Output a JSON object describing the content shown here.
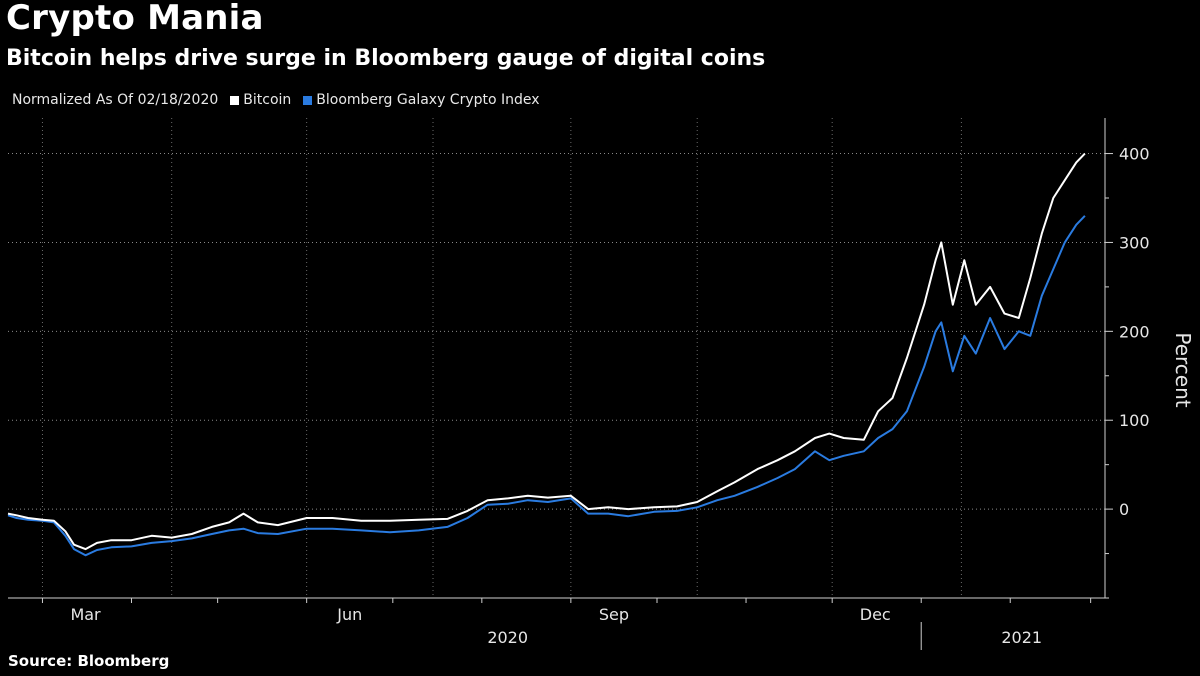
{
  "title": "Crypto Mania",
  "subtitle": "Bitcoin helps drive surge in Bloomberg gauge of digital coins",
  "legend": {
    "note": "Normalized As Of 02/18/2020",
    "items": [
      {
        "label": "Bitcoin",
        "color": "#ffffff"
      },
      {
        "label": "Bloomberg Galaxy Crypto Index",
        "color": "#2a7be0"
      }
    ]
  },
  "source": "Source: Bloomberg",
  "chart_data": {
    "type": "line",
    "ylabel": "Percent",
    "ylim": [
      -100,
      440
    ],
    "yticks": [
      0,
      100,
      200,
      300,
      400
    ],
    "x_month_labels": [
      "Mar",
      "Jun",
      "Sep",
      "Dec"
    ],
    "x_year_labels": [
      "2020",
      "2021"
    ],
    "grid": true,
    "legend_position": "top-left",
    "series": [
      {
        "name": "Bitcoin",
        "color": "#ffffff",
        "points": [
          [
            "2020-02-18",
            -5
          ],
          [
            "2020-02-21",
            -7
          ],
          [
            "2020-02-25",
            -10
          ],
          [
            "2020-03-01",
            -12
          ],
          [
            "2020-03-05",
            -13
          ],
          [
            "2020-03-09",
            -25
          ],
          [
            "2020-03-12",
            -40
          ],
          [
            "2020-03-16",
            -45
          ],
          [
            "2020-03-20",
            -38
          ],
          [
            "2020-03-25",
            -35
          ],
          [
            "2020-04-01",
            -35
          ],
          [
            "2020-04-08",
            -30
          ],
          [
            "2020-04-15",
            -32
          ],
          [
            "2020-04-22",
            -28
          ],
          [
            "2020-04-29",
            -20
          ],
          [
            "2020-05-05",
            -15
          ],
          [
            "2020-05-10",
            -5
          ],
          [
            "2020-05-15",
            -15
          ],
          [
            "2020-05-22",
            -18
          ],
          [
            "2020-06-01",
            -10
          ],
          [
            "2020-06-10",
            -10
          ],
          [
            "2020-06-20",
            -13
          ],
          [
            "2020-06-30",
            -13
          ],
          [
            "2020-07-10",
            -12
          ],
          [
            "2020-07-20",
            -11
          ],
          [
            "2020-07-27",
            -2
          ],
          [
            "2020-08-03",
            10
          ],
          [
            "2020-08-10",
            12
          ],
          [
            "2020-08-17",
            15
          ],
          [
            "2020-08-24",
            13
          ],
          [
            "2020-09-01",
            15
          ],
          [
            "2020-09-07",
            0
          ],
          [
            "2020-09-14",
            2
          ],
          [
            "2020-09-21",
            0
          ],
          [
            "2020-09-30",
            2
          ],
          [
            "2020-10-08",
            3
          ],
          [
            "2020-10-15",
            8
          ],
          [
            "2020-10-22",
            20
          ],
          [
            "2020-10-28",
            30
          ],
          [
            "2020-11-05",
            45
          ],
          [
            "2020-11-12",
            55
          ],
          [
            "2020-11-18",
            65
          ],
          [
            "2020-11-25",
            80
          ],
          [
            "2020-11-30",
            85
          ],
          [
            "2020-12-05",
            80
          ],
          [
            "2020-12-12",
            78
          ],
          [
            "2020-12-17",
            110
          ],
          [
            "2020-12-22",
            125
          ],
          [
            "2020-12-27",
            170
          ],
          [
            "2021-01-02",
            230
          ],
          [
            "2021-01-06",
            280
          ],
          [
            "2021-01-08",
            300
          ],
          [
            "2021-01-12",
            230
          ],
          [
            "2021-01-16",
            280
          ],
          [
            "2021-01-20",
            230
          ],
          [
            "2021-01-25",
            250
          ],
          [
            "2021-01-30",
            220
          ],
          [
            "2021-02-04",
            215
          ],
          [
            "2021-02-08",
            260
          ],
          [
            "2021-02-12",
            310
          ],
          [
            "2021-02-16",
            350
          ],
          [
            "2021-02-20",
            370
          ],
          [
            "2021-02-24",
            390
          ],
          [
            "2021-02-27",
            400
          ]
        ]
      },
      {
        "name": "Bloomberg Galaxy Crypto Index",
        "color": "#2a7be0",
        "points": [
          [
            "2020-02-18",
            -7
          ],
          [
            "2020-02-21",
            -10
          ],
          [
            "2020-02-25",
            -12
          ],
          [
            "2020-03-01",
            -13
          ],
          [
            "2020-03-05",
            -15
          ],
          [
            "2020-03-09",
            -30
          ],
          [
            "2020-03-12",
            -45
          ],
          [
            "2020-03-16",
            -52
          ],
          [
            "2020-03-20",
            -46
          ],
          [
            "2020-03-25",
            -43
          ],
          [
            "2020-04-01",
            -42
          ],
          [
            "2020-04-08",
            -38
          ],
          [
            "2020-04-15",
            -36
          ],
          [
            "2020-04-22",
            -33
          ],
          [
            "2020-04-29",
            -28
          ],
          [
            "2020-05-05",
            -24
          ],
          [
            "2020-05-10",
            -22
          ],
          [
            "2020-05-15",
            -27
          ],
          [
            "2020-05-22",
            -28
          ],
          [
            "2020-06-01",
            -22
          ],
          [
            "2020-06-10",
            -22
          ],
          [
            "2020-06-20",
            -24
          ],
          [
            "2020-06-30",
            -26
          ],
          [
            "2020-07-10",
            -24
          ],
          [
            "2020-07-20",
            -20
          ],
          [
            "2020-07-27",
            -10
          ],
          [
            "2020-08-03",
            5
          ],
          [
            "2020-08-10",
            6
          ],
          [
            "2020-08-17",
            10
          ],
          [
            "2020-08-24",
            8
          ],
          [
            "2020-09-01",
            12
          ],
          [
            "2020-09-07",
            -5
          ],
          [
            "2020-09-14",
            -5
          ],
          [
            "2020-09-21",
            -8
          ],
          [
            "2020-09-30",
            -3
          ],
          [
            "2020-10-08",
            -2
          ],
          [
            "2020-10-15",
            2
          ],
          [
            "2020-10-22",
            10
          ],
          [
            "2020-10-28",
            15
          ],
          [
            "2020-11-05",
            25
          ],
          [
            "2020-11-12",
            35
          ],
          [
            "2020-11-18",
            45
          ],
          [
            "2020-11-25",
            65
          ],
          [
            "2020-11-30",
            55
          ],
          [
            "2020-12-05",
            60
          ],
          [
            "2020-12-12",
            65
          ],
          [
            "2020-12-17",
            80
          ],
          [
            "2020-12-22",
            90
          ],
          [
            "2020-12-27",
            110
          ],
          [
            "2021-01-02",
            160
          ],
          [
            "2021-01-06",
            200
          ],
          [
            "2021-01-08",
            210
          ],
          [
            "2021-01-12",
            155
          ],
          [
            "2021-01-16",
            195
          ],
          [
            "2021-01-20",
            175
          ],
          [
            "2021-01-25",
            215
          ],
          [
            "2021-01-30",
            180
          ],
          [
            "2021-02-04",
            200
          ],
          [
            "2021-02-08",
            195
          ],
          [
            "2021-02-12",
            240
          ],
          [
            "2021-02-16",
            270
          ],
          [
            "2021-02-20",
            300
          ],
          [
            "2021-02-24",
            320
          ],
          [
            "2021-02-27",
            330
          ]
        ]
      }
    ]
  }
}
